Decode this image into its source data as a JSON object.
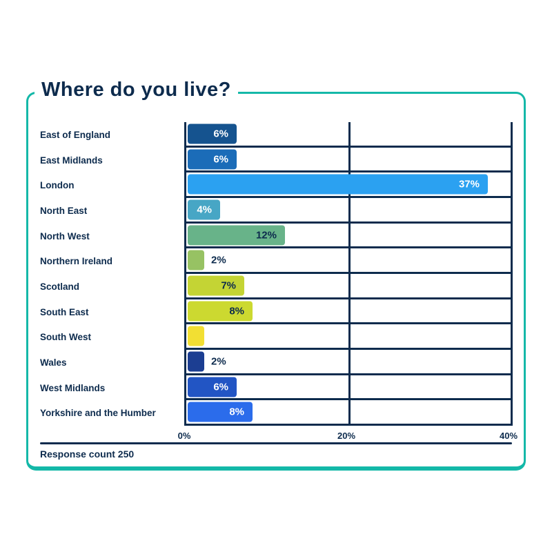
{
  "title": "Where do you live?",
  "footer": {
    "response_count": "Response count 250"
  },
  "colors": {
    "accent_teal": "#14b8a8",
    "text_navy": "#0d2b4d",
    "background": "#ffffff"
  },
  "chart_data": {
    "type": "bar",
    "orientation": "horizontal",
    "title": "Where do you live?",
    "xlabel": "",
    "ylabel": "",
    "xlim": [
      0,
      40
    ],
    "grid": "on",
    "x_ticks": [
      {
        "label": "0%",
        "value": 0
      },
      {
        "label": "20%",
        "value": 20
      },
      {
        "label": "40%",
        "value": 40
      }
    ],
    "categories": [
      "East of England",
      "East Midlands",
      "London",
      "North East",
      "North West",
      "Northern Ireland",
      "Scotland",
      "South East",
      "South West",
      "Wales",
      "West Midlands",
      "Yorkshire and the Humber"
    ],
    "values": [
      6,
      6,
      37,
      4,
      12,
      2,
      7,
      8,
      2,
      2,
      6,
      8
    ],
    "bars": [
      {
        "label": "East of England",
        "value": 6,
        "display": "6%",
        "color": "#15538f",
        "text_color": "#ffffff",
        "label_position": "inside"
      },
      {
        "label": "East Midlands",
        "value": 6,
        "display": "6%",
        "color": "#1b6cb8",
        "text_color": "#ffffff",
        "label_position": "inside"
      },
      {
        "label": "London",
        "value": 37,
        "display": "37%",
        "color": "#2ba1f1",
        "text_color": "#ffffff",
        "label_position": "inside"
      },
      {
        "label": "North East",
        "value": 4,
        "display": "4%",
        "color": "#47a6c5",
        "text_color": "#ffffff",
        "label_position": "inside"
      },
      {
        "label": "North West",
        "value": 12,
        "display": "12%",
        "color": "#68b389",
        "text_color": "#0d2b4d",
        "label_position": "inside"
      },
      {
        "label": "Northern Ireland",
        "value": 2,
        "display": "2%",
        "color": "#97c263",
        "text_color": "#0d2b4d",
        "label_position": "outside"
      },
      {
        "label": "Scotland",
        "value": 7,
        "display": "7%",
        "color": "#c4d434",
        "text_color": "#0d2b4d",
        "label_position": "inside"
      },
      {
        "label": "South East",
        "value": 8,
        "display": "8%",
        "color": "#ccd930",
        "text_color": "#0d2b4d",
        "label_position": "inside"
      },
      {
        "label": "South West",
        "value": 2,
        "display": "",
        "color": "#f2df33",
        "text_color": "#0d2b4d",
        "label_position": "none"
      },
      {
        "label": "Wales",
        "value": 2,
        "display": "2%",
        "color": "#1c3e92",
        "text_color": "#0d2b4d",
        "label_position": "outside"
      },
      {
        "label": "West Midlands",
        "value": 6,
        "display": "6%",
        "color": "#2255c4",
        "text_color": "#ffffff",
        "label_position": "inside"
      },
      {
        "label": "Yorkshire and the Humber",
        "value": 8,
        "display": "8%",
        "color": "#2b6ceb",
        "text_color": "#ffffff",
        "label_position": "inside"
      }
    ]
  }
}
